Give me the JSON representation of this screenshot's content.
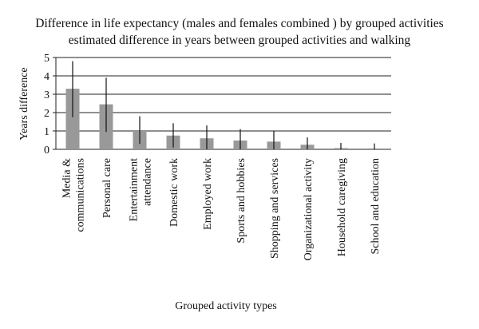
{
  "chart_data": {
    "type": "bar",
    "title": "Difference in life expectancy (males and females combined ) by grouped activities",
    "subtitle": "estimated difference in years between grouped activities and walking",
    "xlabel": "Grouped activity types",
    "ylabel": "Years difference",
    "ylim": [
      0,
      5
    ],
    "yticks": [
      "0",
      "1",
      "2",
      "3",
      "4",
      "5"
    ],
    "grid": true,
    "legend": "none",
    "categories": [
      "Media & communications",
      "Personal care",
      "Entertainment attendance",
      "Domestic work",
      "Employed work",
      "Sports and hobbies",
      "Shopping and services",
      "Organizational activity",
      "Household caregiving",
      "School and education"
    ],
    "category_lines": [
      [
        "Media &",
        "communications"
      ],
      [
        "Personal care"
      ],
      [
        "Entertainment",
        "attendance"
      ],
      [
        "Domestic work"
      ],
      [
        "Employed work"
      ],
      [
        "Sports and hobbies"
      ],
      [
        "Shopping and services"
      ],
      [
        "Organizational activity"
      ],
      [
        "Household caregiving"
      ],
      [
        "School and education"
      ]
    ],
    "values": [
      3.3,
      2.45,
      1.0,
      0.75,
      0.6,
      0.48,
      0.42,
      0.25,
      0.07,
      0.05
    ],
    "error_low": [
      1.75,
      0.95,
      0.3,
      0.1,
      0.0,
      0.0,
      0.0,
      0.0,
      0.0,
      0.0
    ],
    "error_high": [
      4.8,
      3.9,
      1.8,
      1.42,
      1.3,
      1.1,
      0.98,
      0.65,
      0.35,
      0.32
    ],
    "bar_color": "#999999",
    "error_color": "#111111"
  }
}
